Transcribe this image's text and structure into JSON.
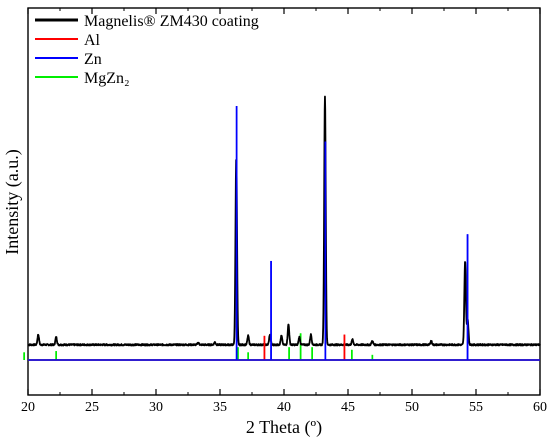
{
  "chart_data": {
    "type": "line",
    "title": "",
    "xlabel": "2 Theta (º)",
    "ylabel": "Intensity (a.u.)",
    "xlim": [
      20,
      60
    ],
    "x_ticks": [
      20,
      25,
      30,
      35,
      40,
      45,
      50,
      55,
      60
    ],
    "y_ticks": [],
    "grid": false,
    "legend_placement": "top-left",
    "series": [
      {
        "name": "Magnelis® ZM430 coating",
        "color": "#000000",
        "style": "profile",
        "baseline": 0.06,
        "noise": 0.003,
        "peaks": [
          {
            "x": 20.8,
            "h": 0.04
          },
          {
            "x": 22.2,
            "h": 0.03
          },
          {
            "x": 33.3,
            "h": 0.008
          },
          {
            "x": 34.6,
            "h": 0.01
          },
          {
            "x": 36.27,
            "h": 0.74
          },
          {
            "x": 37.2,
            "h": 0.035
          },
          {
            "x": 38.9,
            "h": 0.04
          },
          {
            "x": 39.8,
            "h": 0.035
          },
          {
            "x": 40.35,
            "h": 0.08
          },
          {
            "x": 41.2,
            "h": 0.03
          },
          {
            "x": 42.1,
            "h": 0.04
          },
          {
            "x": 43.2,
            "h": 0.98
          },
          {
            "x": 45.35,
            "h": 0.02
          },
          {
            "x": 46.9,
            "h": 0.015
          },
          {
            "x": 51.5,
            "h": 0.015
          },
          {
            "x": 54.15,
            "h": 0.33
          },
          {
            "x": 54.35,
            "h": 0.1
          }
        ]
      },
      {
        "name": "Al",
        "color": "#ff0000",
        "style": "sticks",
        "baseline": 0.0,
        "peaks": [
          {
            "x": 38.47,
            "h": 0.095
          },
          {
            "x": 44.72,
            "h": 0.1
          }
        ]
      },
      {
        "name": "Zn",
        "color": "#0000ff",
        "style": "sticks",
        "baseline": 0.0,
        "peaks": [
          {
            "x": 36.3,
            "h": 1.0
          },
          {
            "x": 38.99,
            "h": 0.39
          },
          {
            "x": 43.23,
            "h": 0.86
          },
          {
            "x": 54.34,
            "h": 0.495
          }
        ]
      },
      {
        "name": "MgZn₂",
        "color": "#00ee00",
        "style": "sticks",
        "baseline": 0.0,
        "peaks": [
          {
            "x": 19.7,
            "h": 0.03
          },
          {
            "x": 22.2,
            "h": 0.035
          },
          {
            "x": 36.4,
            "h": 0.05
          },
          {
            "x": 37.2,
            "h": 0.03
          },
          {
            "x": 40.4,
            "h": 0.05
          },
          {
            "x": 41.3,
            "h": 0.105
          },
          {
            "x": 42.2,
            "h": 0.05
          },
          {
            "x": 45.3,
            "h": 0.04
          },
          {
            "x": 46.9,
            "h": 0.02
          }
        ]
      }
    ]
  }
}
